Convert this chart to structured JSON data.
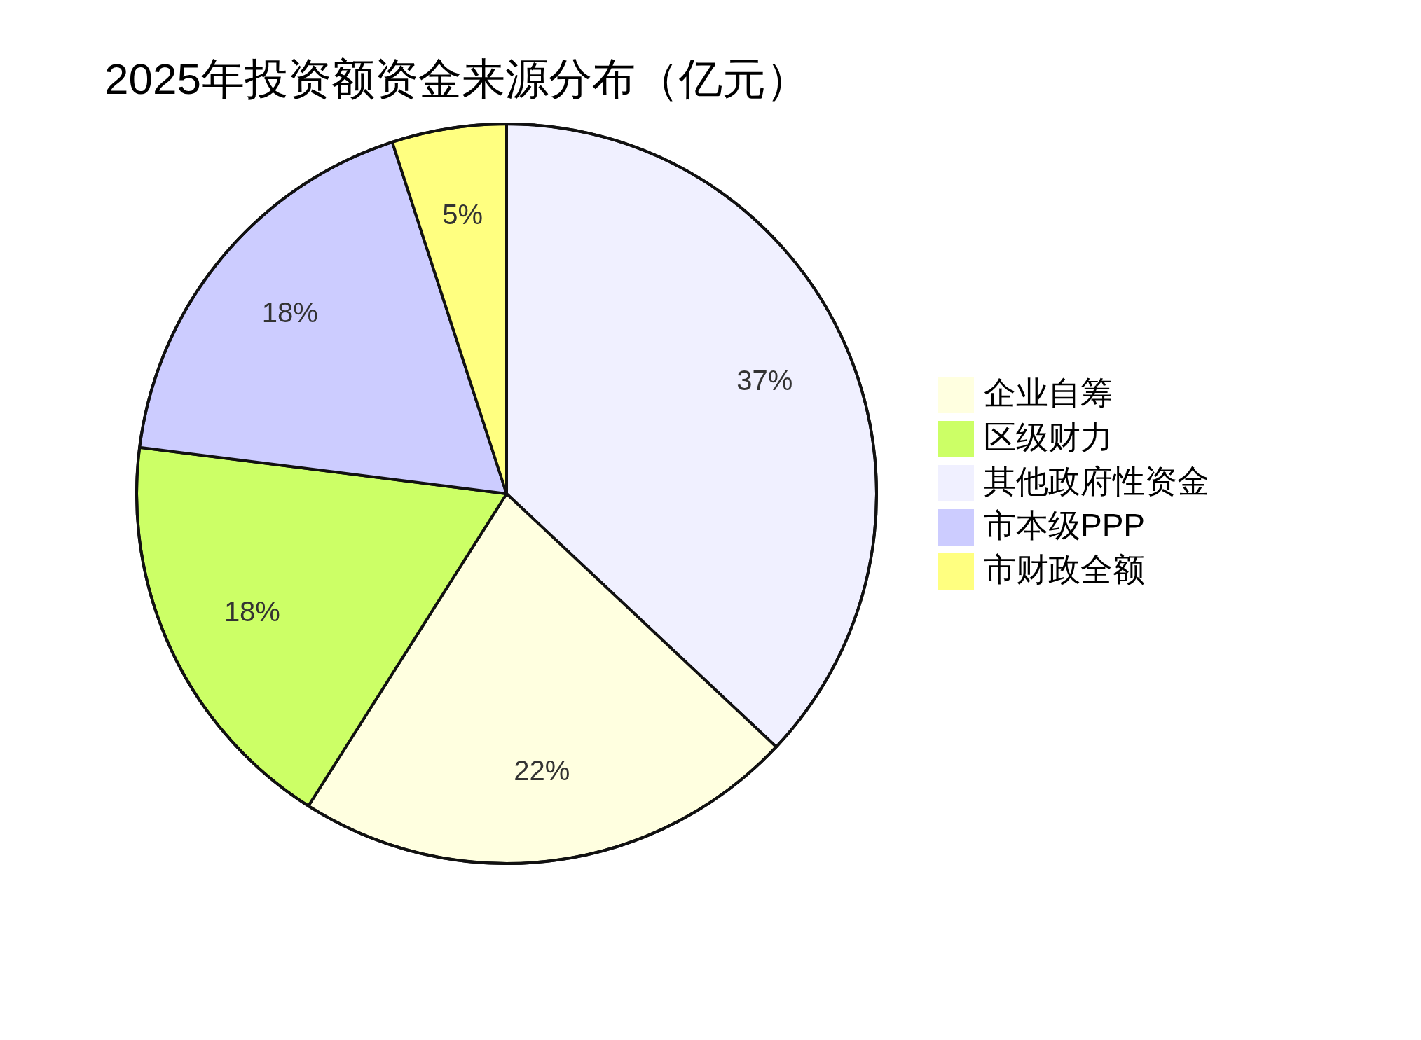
{
  "chart_data": {
    "type": "pie",
    "title": "2025年投资额资金来源分布（亿元）",
    "categories": [
      "企业自筹",
      "区级财力",
      "其他政府性资金",
      "市本级PPP",
      "市财政全额"
    ],
    "values": [
      22,
      18,
      37,
      18,
      5
    ],
    "colors": [
      "#ffffe0",
      "#ccff66",
      "#f0f0ff",
      "#ccccff",
      "#ffff80"
    ],
    "value_labels": [
      "22%",
      "18%",
      "37%",
      "18%",
      "5%"
    ],
    "legend": "right"
  }
}
